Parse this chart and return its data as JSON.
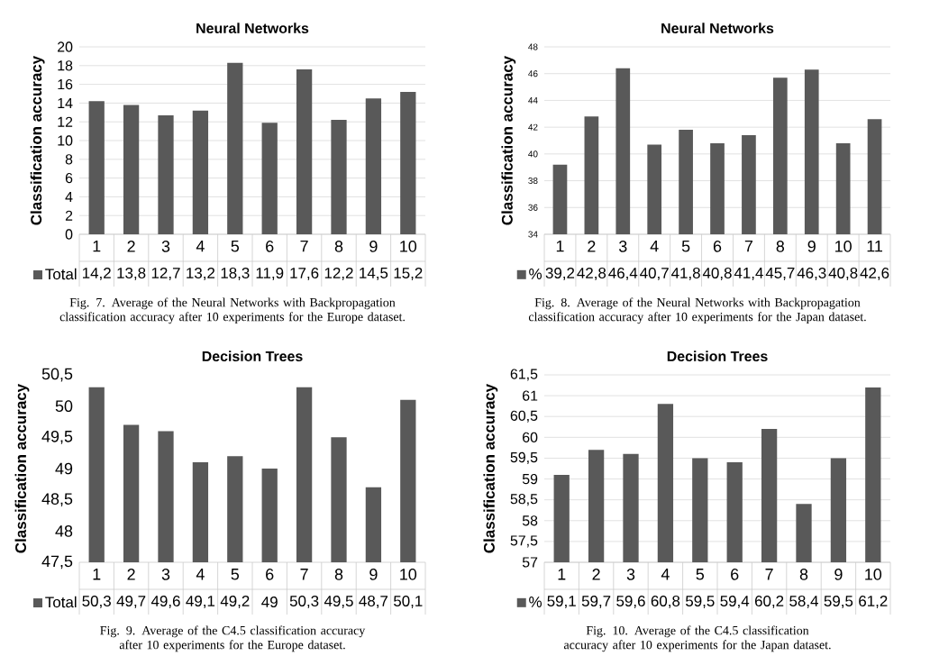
{
  "chart_data": [
    {
      "type": "bar",
      "title": "Neural Networks",
      "ylabel": "Classification accuracy",
      "categories": [
        "1",
        "2",
        "3",
        "4",
        "5",
        "6",
        "7",
        "8",
        "9",
        "10"
      ],
      "series": [
        {
          "name": "Total",
          "color": "#595959",
          "values": [
            14.2,
            13.8,
            12.7,
            13.2,
            18.3,
            11.9,
            17.6,
            12.2,
            14.5,
            15.2
          ],
          "value_labels": [
            "14,2",
            "13,8",
            "12,7",
            "13,2",
            "18,3",
            "11,9",
            "17,6",
            "12,2",
            "14,5",
            "15,2"
          ]
        }
      ],
      "ylim": [
        0,
        20
      ],
      "yticks": [
        0,
        2,
        4,
        6,
        8,
        10,
        12,
        14,
        16,
        18,
        20
      ],
      "grid": "y",
      "legend": "bottom",
      "annotations": [
        "Fig. 7. Average of the Neural Networks with Backpropagation classification accuracy after 10 experiments for the Europe dataset."
      ]
    },
    {
      "type": "bar",
      "title": "Neural Networks",
      "ylabel": "Classification accuracy",
      "categories": [
        "1",
        "2",
        "3",
        "4",
        "5",
        "6",
        "7",
        "8",
        "9",
        "10",
        "11"
      ],
      "series": [
        {
          "name": "%",
          "color": "#595959",
          "values": [
            39.2,
            42.8,
            46.4,
            40.7,
            41.8,
            40.8,
            41.4,
            45.7,
            46.3,
            40.8,
            42.6
          ],
          "value_labels": [
            "39,2",
            "42,8",
            "46,4",
            "40,7",
            "41,8",
            "40,8",
            "41,4",
            "45,7",
            "46,3",
            "40,8",
            "42,6"
          ]
        }
      ],
      "ylim": [
        34,
        48
      ],
      "yticks": [
        34,
        36,
        38,
        40,
        42,
        44,
        46,
        48
      ],
      "grid": "y",
      "legend": "bottom",
      "annotations": [
        "Fig. 8. Average of the Neural Networks with Backpropagation classification accuracy after 10 experiments for the Japan dataset."
      ]
    },
    {
      "type": "bar",
      "title": "Decision Trees",
      "ylabel": "Classification accuracy",
      "categories": [
        "1",
        "2",
        "3",
        "4",
        "5",
        "6",
        "7",
        "8",
        "9",
        "10"
      ],
      "series": [
        {
          "name": "Total",
          "color": "#595959",
          "values": [
            50.3,
            49.7,
            49.6,
            49.1,
            49.2,
            49,
            50.3,
            49.5,
            48.7,
            50.1
          ],
          "value_labels": [
            "50,3",
            "49,7",
            "49,6",
            "49,1",
            "49,2",
            "49",
            "50,3",
            "49,5",
            "48,7",
            "50,1"
          ]
        }
      ],
      "ylim": [
        47.5,
        50.5
      ],
      "yticks": [
        {
          "value": 47.5,
          "label": "47,5"
        },
        48,
        {
          "value": 48.5,
          "label": "48,5"
        },
        49,
        {
          "value": 49.5,
          "label": "49,5"
        },
        50,
        {
          "value": 50.5,
          "label": "50,5"
        }
      ],
      "grid": false,
      "legend": "bottom",
      "annotations": [
        "Fig. 9. Average of the C4.5 classification accuracy after 10 experiments for the Europe dataset."
      ]
    },
    {
      "type": "bar",
      "title": "Decision Trees",
      "ylabel": "Classification accuracy",
      "categories": [
        "1",
        "2",
        "3",
        "4",
        "5",
        "6",
        "7",
        "8",
        "9",
        "10"
      ],
      "series": [
        {
          "name": "%",
          "color": "#595959",
          "values": [
            59.1,
            59.7,
            59.6,
            60.8,
            59.5,
            59.4,
            60.2,
            58.4,
            59.5,
            61.2
          ],
          "value_labels": [
            "59,1",
            "59,7",
            "59,6",
            "60,8",
            "59,5",
            "59,4",
            "60,2",
            "58,4",
            "59,5",
            "61,2"
          ]
        }
      ],
      "ylim": [
        57,
        61.5
      ],
      "yticks": [
        57,
        {
          "value": 57.5,
          "label": "57,5"
        },
        58,
        {
          "value": 58.5,
          "label": "58,5"
        },
        59,
        {
          "value": 59.5,
          "label": "59,5"
        },
        60,
        {
          "value": 60.5,
          "label": "60,5"
        },
        61,
        {
          "value": 61.5,
          "label": "61,5"
        }
      ],
      "grid": "y",
      "legend": "bottom",
      "annotations": [
        "Fig. 10. Average of the C4.5 classification accuracy after 10 experiments for the Japan dataset."
      ]
    }
  ]
}
